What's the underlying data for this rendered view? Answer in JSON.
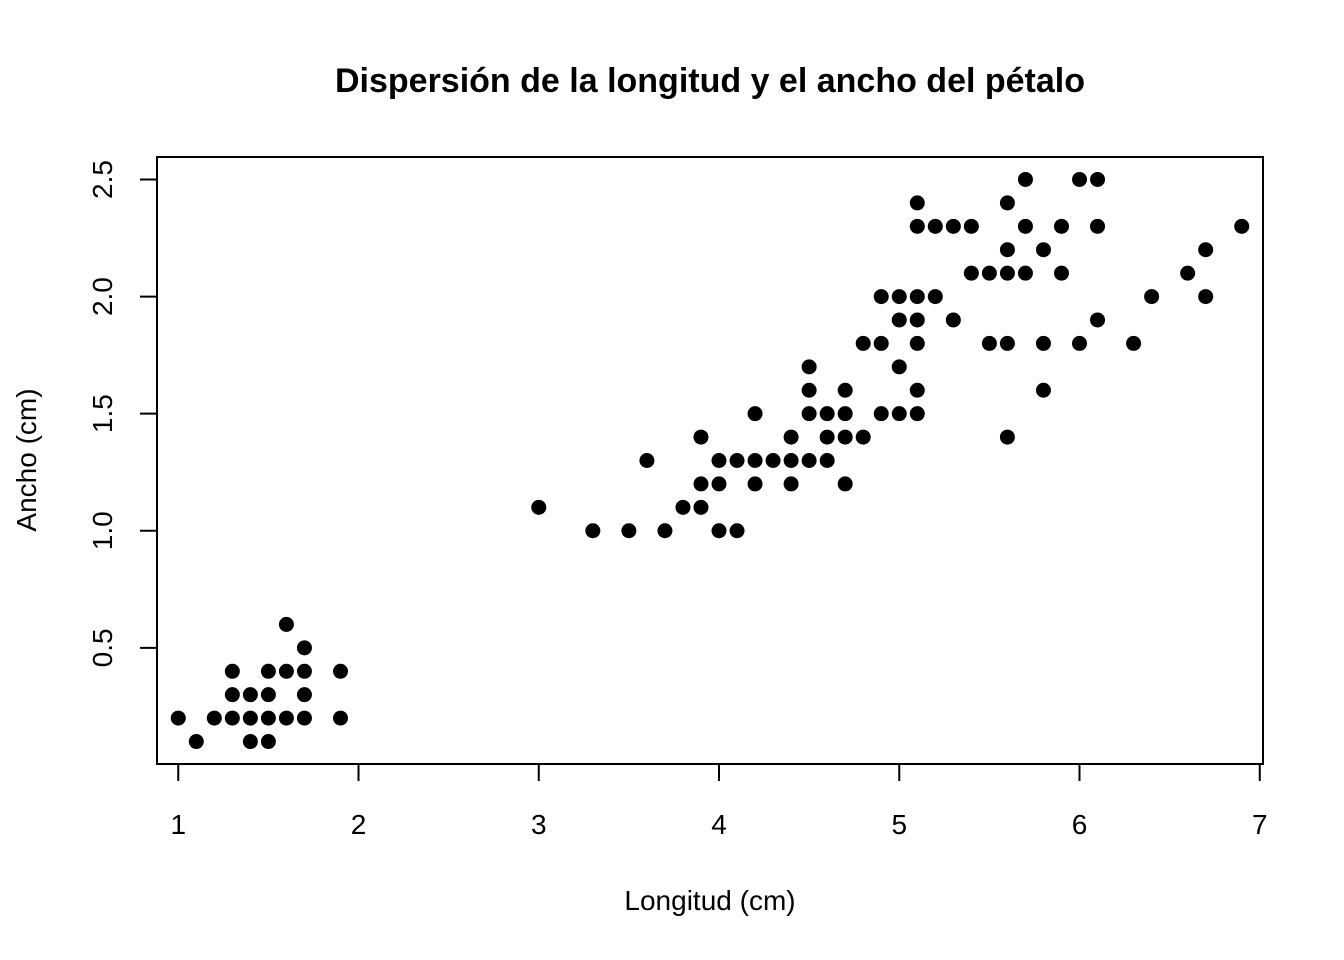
{
  "chart_data": {
    "type": "scatter",
    "title": "Dispersión de la longitud y el ancho del pétalo",
    "xlabel": "Longitud (cm)",
    "ylabel": "Ancho (cm)",
    "xlim": [
      0.882,
      7.018
    ],
    "ylim": [
      0.004,
      2.596
    ],
    "x_ticks": [
      1,
      2,
      3,
      4,
      5,
      6,
      7
    ],
    "y_ticks": [
      0.5,
      1.0,
      1.5,
      2.0,
      2.5
    ],
    "x_tick_labels": [
      "1",
      "2",
      "3",
      "4",
      "5",
      "6",
      "7"
    ],
    "y_tick_labels": [
      "0.5",
      "1.0",
      "1.5",
      "2.0",
      "2.5"
    ],
    "marker_color": "#000000",
    "grid": false,
    "points": [
      [
        1.0,
        0.2
      ],
      [
        1.1,
        0.1
      ],
      [
        1.2,
        0.2
      ],
      [
        1.3,
        0.2
      ],
      [
        1.3,
        0.3
      ],
      [
        1.3,
        0.4
      ],
      [
        1.4,
        0.1
      ],
      [
        1.4,
        0.2
      ],
      [
        1.4,
        0.3
      ],
      [
        1.5,
        0.1
      ],
      [
        1.5,
        0.2
      ],
      [
        1.5,
        0.3
      ],
      [
        1.5,
        0.4
      ],
      [
        1.6,
        0.2
      ],
      [
        1.6,
        0.4
      ],
      [
        1.6,
        0.6
      ],
      [
        1.7,
        0.2
      ],
      [
        1.7,
        0.3
      ],
      [
        1.7,
        0.4
      ],
      [
        1.7,
        0.5
      ],
      [
        1.9,
        0.2
      ],
      [
        1.9,
        0.4
      ],
      [
        3.0,
        1.1
      ],
      [
        3.3,
        1.0
      ],
      [
        3.5,
        1.0
      ],
      [
        3.6,
        1.3
      ],
      [
        3.7,
        1.0
      ],
      [
        3.8,
        1.1
      ],
      [
        3.9,
        1.1
      ],
      [
        3.9,
        1.2
      ],
      [
        3.9,
        1.4
      ],
      [
        4.0,
        1.0
      ],
      [
        4.0,
        1.2
      ],
      [
        4.0,
        1.3
      ],
      [
        4.1,
        1.0
      ],
      [
        4.1,
        1.3
      ],
      [
        4.2,
        1.2
      ],
      [
        4.2,
        1.3
      ],
      [
        4.2,
        1.5
      ],
      [
        4.3,
        1.3
      ],
      [
        4.4,
        1.2
      ],
      [
        4.4,
        1.3
      ],
      [
        4.4,
        1.4
      ],
      [
        4.5,
        1.3
      ],
      [
        4.5,
        1.5
      ],
      [
        4.5,
        1.6
      ],
      [
        4.5,
        1.7
      ],
      [
        4.6,
        1.3
      ],
      [
        4.6,
        1.4
      ],
      [
        4.6,
        1.5
      ],
      [
        4.7,
        1.2
      ],
      [
        4.7,
        1.4
      ],
      [
        4.7,
        1.5
      ],
      [
        4.7,
        1.6
      ],
      [
        4.8,
        1.4
      ],
      [
        4.8,
        1.8
      ],
      [
        4.9,
        1.5
      ],
      [
        4.9,
        1.8
      ],
      [
        4.9,
        2.0
      ],
      [
        5.0,
        1.5
      ],
      [
        5.0,
        1.7
      ],
      [
        5.0,
        1.9
      ],
      [
        5.0,
        2.0
      ],
      [
        5.1,
        1.5
      ],
      [
        5.1,
        1.6
      ],
      [
        5.1,
        1.8
      ],
      [
        5.1,
        1.9
      ],
      [
        5.1,
        2.0
      ],
      [
        5.1,
        2.3
      ],
      [
        5.1,
        2.4
      ],
      [
        5.2,
        2.0
      ],
      [
        5.2,
        2.3
      ],
      [
        5.3,
        1.9
      ],
      [
        5.3,
        2.3
      ],
      [
        5.4,
        2.1
      ],
      [
        5.4,
        2.3
      ],
      [
        5.5,
        1.8
      ],
      [
        5.5,
        2.1
      ],
      [
        5.6,
        1.4
      ],
      [
        5.6,
        1.8
      ],
      [
        5.6,
        2.1
      ],
      [
        5.6,
        2.2
      ],
      [
        5.6,
        2.4
      ],
      [
        5.7,
        2.1
      ],
      [
        5.7,
        2.3
      ],
      [
        5.7,
        2.5
      ],
      [
        5.8,
        1.6
      ],
      [
        5.8,
        1.8
      ],
      [
        5.8,
        2.2
      ],
      [
        5.9,
        2.1
      ],
      [
        5.9,
        2.3
      ],
      [
        6.0,
        1.8
      ],
      [
        6.0,
        2.5
      ],
      [
        6.1,
        1.9
      ],
      [
        6.1,
        2.3
      ],
      [
        6.1,
        2.5
      ],
      [
        6.3,
        1.8
      ],
      [
        6.4,
        2.0
      ],
      [
        6.6,
        2.1
      ],
      [
        6.7,
        2.0
      ],
      [
        6.7,
        2.2
      ],
      [
        6.9,
        2.3
      ]
    ]
  }
}
